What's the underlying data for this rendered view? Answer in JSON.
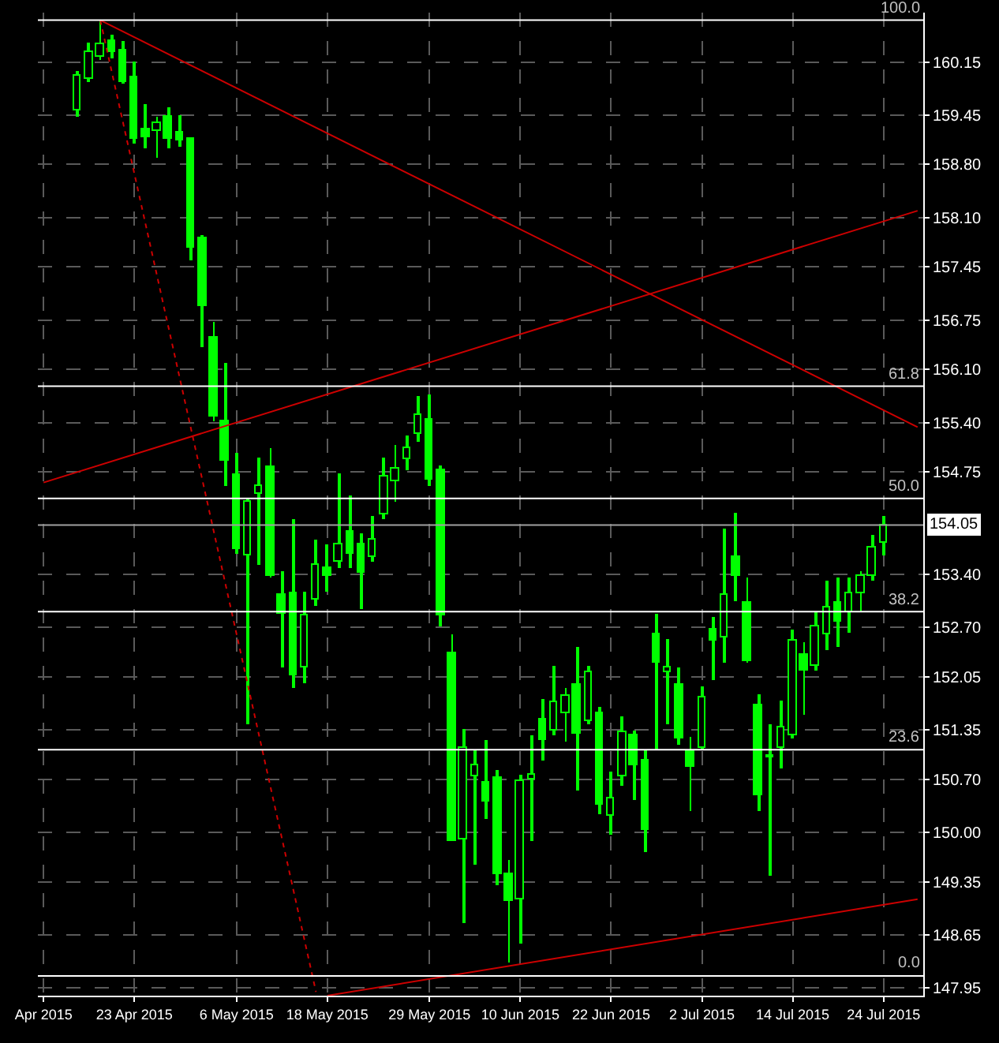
{
  "chart_data": {
    "type": "candlestick",
    "categories": [
      "Apr 2015",
      null,
      null,
      null,
      null,
      null,
      null,
      null,
      "23 Apr 2015",
      null,
      null,
      null,
      null,
      null,
      null,
      null,
      null,
      "6 May 2015",
      null,
      null,
      null,
      null,
      null,
      null,
      null,
      "18 May 2015",
      null,
      null,
      null,
      null,
      null,
      null,
      null,
      null,
      "29 May 2015",
      null,
      null,
      null,
      null,
      null,
      null,
      null,
      "10 Jun 2015",
      null,
      null,
      null,
      null,
      null,
      null,
      null,
      "22 Jun 2015",
      null,
      null,
      null,
      null,
      null,
      null,
      null,
      "2 Jul 2015",
      null,
      null,
      null,
      null,
      null,
      null,
      null,
      "14 Jul 2015",
      null,
      null,
      null,
      null,
      null,
      null,
      null,
      "24 Jul 2015",
      null,
      null,
      null
    ],
    "series": [
      {
        "type": "line",
        "color": "#cc0000",
        "values": [
          null,
          null,
          null,
          null,
          null,
          160.7,
          null,
          null,
          null,
          null,
          null,
          null,
          null,
          null,
          null,
          null,
          null,
          null,
          null,
          null,
          null,
          null,
          null,
          null,
          null,
          null,
          null,
          null,
          null,
          null,
          null,
          null,
          null,
          null,
          null,
          null,
          null,
          null,
          null,
          null,
          null,
          null,
          null,
          null,
          null,
          null,
          null,
          null,
          null,
          null,
          null,
          null,
          null,
          null,
          null,
          null,
          null,
          null,
          null,
          null,
          null,
          null,
          null,
          null,
          null,
          null,
          null,
          null,
          null,
          null,
          null,
          null,
          null,
          null,
          null,
          null,
          null,
          155.34
        ]
      },
      {
        "type": "line",
        "color": "#cc0000",
        "values": [
          154.61,
          null,
          null,
          null,
          null,
          null,
          null,
          null,
          null,
          null,
          null,
          null,
          null,
          null,
          null,
          null,
          null,
          null,
          null,
          null,
          null,
          null,
          null,
          null,
          null,
          null,
          null,
          null,
          null,
          null,
          null,
          null,
          null,
          null,
          null,
          null,
          null,
          null,
          null,
          null,
          null,
          null,
          null,
          null,
          null,
          null,
          null,
          null,
          null,
          null,
          null,
          null,
          null,
          null,
          null,
          null,
          null,
          null,
          null,
          null,
          null,
          null,
          null,
          null,
          null,
          null,
          null,
          null,
          null,
          null,
          null,
          null,
          null,
          null,
          null,
          null,
          null,
          158.19
        ]
      },
      {
        "type": "line",
        "color": "#cc0000",
        "line_style": "dotted",
        "values": [
          null,
          null,
          null,
          null,
          null,
          160.7,
          null,
          null,
          null,
          null,
          null,
          null,
          null,
          null,
          null,
          null,
          null,
          null,
          null,
          null,
          null,
          null,
          null,
          null,
          147.9,
          null,
          null,
          null,
          null,
          null,
          null,
          null,
          null,
          null,
          null,
          null,
          null,
          null,
          null,
          null,
          null,
          null,
          null,
          null,
          null,
          null,
          null,
          null,
          null,
          null,
          null,
          null,
          null,
          null,
          null,
          null,
          null,
          null,
          null,
          null,
          null,
          null,
          null,
          null,
          null,
          null,
          null,
          null,
          null,
          null,
          null,
          null,
          null,
          null,
          null,
          null,
          null,
          null
        ]
      },
      {
        "type": "line",
        "color": "#cc0000",
        "values": [
          null,
          null,
          null,
          null,
          null,
          null,
          null,
          null,
          null,
          null,
          null,
          null,
          null,
          null,
          null,
          null,
          null,
          null,
          null,
          null,
          null,
          null,
          null,
          null,
          null,
          147.85,
          null,
          null,
          null,
          null,
          null,
          null,
          null,
          null,
          null,
          null,
          null,
          null,
          null,
          null,
          null,
          null,
          null,
          null,
          null,
          null,
          null,
          null,
          null,
          null,
          null,
          null,
          null,
          null,
          null,
          null,
          null,
          null,
          null,
          null,
          null,
          null,
          null,
          null,
          null,
          null,
          null,
          null,
          null,
          null,
          null,
          null,
          null,
          null,
          null,
          null,
          null,
          149.12
        ]
      },
      {
        "color": "#00ff00",
        "ohlc": [
          null,
          null,
          null,
          [
            159.52,
            160.03,
            159.42,
            159.96
          ],
          [
            159.93,
            160.4,
            159.89,
            160.28
          ],
          [
            160.21,
            160.7,
            160.17,
            160.38
          ],
          [
            160.42,
            160.5,
            160.19,
            160.28
          ],
          [
            160.31,
            160.43,
            159.86,
            159.89
          ],
          [
            159.95,
            160.16,
            159.08,
            159.13
          ],
          [
            159.26,
            159.59,
            159.02,
            159.16
          ],
          [
            159.24,
            159.43,
            158.88,
            159.34
          ],
          [
            159.43,
            159.55,
            159.01,
            159.14
          ],
          [
            159.21,
            159.45,
            159.04,
            159.12
          ],
          [
            159.13,
            159.15,
            157.53,
            157.71
          ],
          [
            157.83,
            157.87,
            156.39,
            156.94
          ],
          [
            156.51,
            156.72,
            155.41,
            155.47
          ],
          [
            155.41,
            156.19,
            154.56,
            154.9
          ],
          [
            154.7,
            155.0,
            153.68,
            153.74
          ],
          [
            153.64,
            154.39,
            151.43,
            154.35
          ],
          [
            154.47,
            154.93,
            153.52,
            154.57
          ],
          [
            154.82,
            155.07,
            153.35,
            153.37
          ],
          [
            153.13,
            153.45,
            152.17,
            152.89
          ],
          [
            153.15,
            154.13,
            151.9,
            152.06
          ],
          [
            152.17,
            153.18,
            151.97,
            152.85
          ],
          [
            153.06,
            153.86,
            152.98,
            153.53
          ],
          [
            153.48,
            153.79,
            153.18,
            153.38
          ],
          [
            153.57,
            154.73,
            153.48,
            153.79
          ],
          [
            153.97,
            154.43,
            153.48,
            153.67
          ],
          [
            153.79,
            153.94,
            152.95,
            153.42
          ],
          [
            153.62,
            154.16,
            153.56,
            153.86
          ],
          [
            154.19,
            154.93,
            154.13,
            154.69
          ],
          [
            154.63,
            155.1,
            154.36,
            154.79
          ],
          [
            154.92,
            155.22,
            154.77,
            155.06
          ],
          [
            155.25,
            155.74,
            155.14,
            155.49
          ],
          [
            155.43,
            155.78,
            154.56,
            154.65
          ],
          [
            154.78,
            154.83,
            152.71,
            152.85
          ],
          [
            152.37,
            152.61,
            149.88,
            149.89
          ],
          [
            149.91,
            151.36,
            148.8,
            151.11
          ],
          [
            150.73,
            151.09,
            149.57,
            150.89
          ],
          [
            150.65,
            151.21,
            150.18,
            150.4
          ],
          [
            150.72,
            150.82,
            149.3,
            149.45
          ],
          [
            149.45,
            149.64,
            148.29,
            149.09
          ],
          [
            149.12,
            150.75,
            148.53,
            150.67
          ],
          [
            150.7,
            151.29,
            149.88,
            150.75
          ],
          [
            151.48,
            151.76,
            150.95,
            151.21
          ],
          [
            151.35,
            152.2,
            151.29,
            151.71
          ],
          [
            151.57,
            151.91,
            151.19,
            151.79
          ],
          [
            151.95,
            152.44,
            150.55,
            151.31
          ],
          [
            151.46,
            152.19,
            151.43,
            152.12
          ],
          [
            151.58,
            151.66,
            150.25,
            150.36
          ],
          [
            150.22,
            150.81,
            149.98,
            150.45
          ],
          [
            150.74,
            151.53,
            150.62,
            151.33
          ],
          [
            151.27,
            151.35,
            150.42,
            150.89
          ],
          [
            150.94,
            151.09,
            149.74,
            150.03
          ],
          [
            152.62,
            152.88,
            151.09,
            152.24
          ],
          [
            152.12,
            152.54,
            151.43,
            152.18
          ],
          [
            151.95,
            152.18,
            151.16,
            151.23
          ],
          [
            151.08,
            151.26,
            150.28,
            150.87
          ],
          [
            151.11,
            151.93,
            151.09,
            151.78
          ],
          [
            152.67,
            152.83,
            152.0,
            152.52
          ],
          [
            152.56,
            154.0,
            152.24,
            153.13
          ],
          [
            153.62,
            154.21,
            153.05,
            153.37
          ],
          [
            153.03,
            153.35,
            152.24,
            152.26
          ],
          [
            151.68,
            151.83,
            150.28,
            150.5
          ],
          [
            151.02,
            151.43,
            149.44,
            150.99
          ],
          [
            151.11,
            151.73,
            150.85,
            151.39
          ],
          [
            151.28,
            152.67,
            151.24,
            152.53
          ],
          [
            152.34,
            152.51,
            151.56,
            152.14
          ],
          [
            152.2,
            152.91,
            152.14,
            152.71
          ],
          [
            152.62,
            153.32,
            152.41,
            152.96
          ],
          [
            153.03,
            153.35,
            152.44,
            152.78
          ],
          [
            152.91,
            153.35,
            152.64,
            153.15
          ],
          [
            153.15,
            153.45,
            152.91,
            153.37
          ],
          [
            153.38,
            153.92,
            153.32,
            153.75
          ],
          [
            153.81,
            154.16,
            153.65,
            154.05
          ],
          null,
          null,
          null
        ]
      }
    ],
    "ylim": [
      147.85,
      160.8
    ],
    "yticks": [
      {
        "value": 147.95,
        "label": "147.95"
      },
      {
        "value": 148.65,
        "label": "148.65"
      },
      {
        "value": 149.35,
        "label": "149.35"
      },
      {
        "value": 150.0,
        "label": "150.00"
      },
      {
        "value": 150.7,
        "label": "150.70"
      },
      {
        "value": 151.35,
        "label": "151.35"
      },
      {
        "value": 152.05,
        "label": "152.05"
      },
      {
        "value": 152.7,
        "label": "152.70"
      },
      {
        "value": 153.4,
        "label": "153.40"
      },
      {
        "value": 154.75,
        "label": "154.75"
      },
      {
        "value": 155.4,
        "label": "155.40"
      },
      {
        "value": 156.1,
        "label": "156.10"
      },
      {
        "value": 156.75,
        "label": "156.75"
      },
      {
        "value": 157.45,
        "label": "157.45"
      },
      {
        "value": 158.1,
        "label": "158.10"
      },
      {
        "value": 158.8,
        "label": "158.80"
      },
      {
        "value": 159.45,
        "label": "159.45"
      },
      {
        "value": 160.15,
        "label": "160.15"
      }
    ],
    "grid": true,
    "ref_lines": [
      {
        "axis": "y",
        "value": 160.7,
        "color": "#ffffff"
      },
      {
        "axis": "y",
        "value": 155.88,
        "color": "#ffffff"
      },
      {
        "axis": "y",
        "value": 154.4,
        "color": "#ffffff"
      },
      {
        "axis": "y",
        "value": 152.91,
        "color": "#ffffff"
      },
      {
        "axis": "y",
        "value": 151.09,
        "color": "#ffffff"
      },
      {
        "axis": "y",
        "value": 148.11,
        "color": "#ffffff"
      },
      {
        "axis": "y",
        "value": 154.05,
        "label": "154.05",
        "color": "#a0a0a0"
      }
    ],
    "annotations": [
      {
        "text": "100.0",
        "y": 160.7
      },
      {
        "text": "61.8",
        "y": 155.88
      },
      {
        "text": "50.0",
        "y": 154.4
      },
      {
        "text": "38.2",
        "y": 152.91
      },
      {
        "text": "23.6",
        "y": 151.09
      },
      {
        "text": "0.0",
        "y": 148.11
      }
    ]
  }
}
